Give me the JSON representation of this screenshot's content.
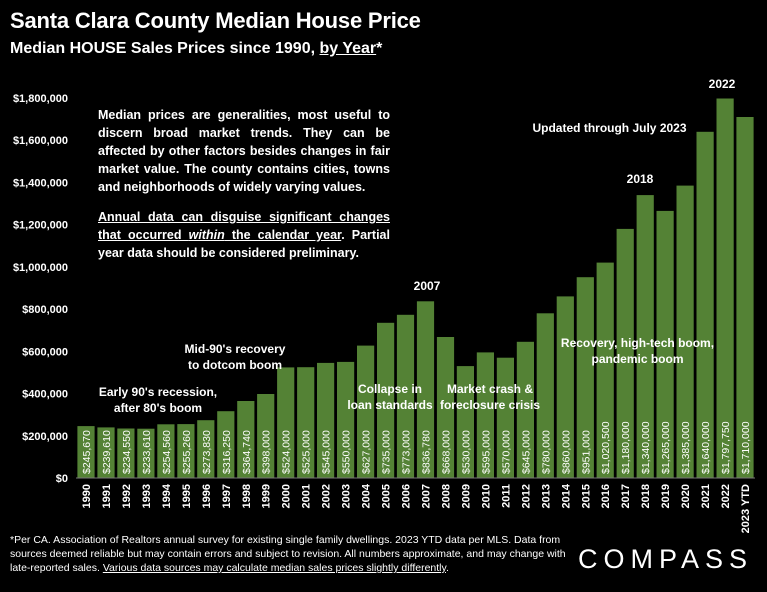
{
  "header": {
    "title": "Santa Clara County Median House Price",
    "subtitle_prefix": "Median HOUSE Sales Prices since 1990, ",
    "subtitle_link": "by Year",
    "subtitle_suffix": "*"
  },
  "notes": {
    "para1": "Median prices are generalities, most useful to discern broad market trends. They can be affected by other factors besides changes in fair market value. The county contains cities, towns and neighborhoods of widely varying values.",
    "para2_u1": "Annual data can disguise significant changes that occurred ",
    "para2_italic": "within",
    "para2_u2": " the calendar year",
    "para2_rest": ". Partial year data should be considered preliminary."
  },
  "annotations": {
    "early90s": "Early 90's recession,\nafter 80's boom",
    "mid90s": "Mid-90's recovery\nto dotcom boom",
    "y2007": "2007",
    "collapse": "Collapse in\nloan standards",
    "crash": "Market crash &\nforeclosure crisis",
    "y2018": "2018",
    "recovery": "Recovery, high-tech boom,\npandemic boom",
    "y2022": "2022",
    "updated": "Updated through July 2023"
  },
  "footer": {
    "line_main": "*Per CA. Association of Realtors annual survey for existing single family dwellings. 2023 YTD data per MLS. Data from sources deemed reliable but may contain errors and subject to revision. All numbers approximate, and may change with late-reported sales. ",
    "line_underlined": "Various data sources may calculate median sales prices slightly differently",
    "line_end": ".",
    "logo": "COMPASS"
  },
  "colors": {
    "bar": "#548235",
    "background": "#000000",
    "text": "#ffffff"
  },
  "chart_data": {
    "type": "bar",
    "title": "Santa Clara County Median House Price",
    "ylim": [
      0,
      1800000
    ],
    "yticks": [
      "$0",
      "$200,000",
      "$400,000",
      "$600,000",
      "$800,000",
      "$1,000,000",
      "$1,200,000",
      "$1,400,000",
      "$1,600,000",
      "$1,800,000"
    ],
    "ytick_values": [
      0,
      200000,
      400000,
      600000,
      800000,
      1000000,
      1200000,
      1400000,
      1600000,
      1800000
    ],
    "categories": [
      "1990",
      "1991",
      "1992",
      "1993",
      "1994",
      "1995",
      "1996",
      "1997",
      "1998",
      "1999",
      "2000",
      "2001",
      "2002",
      "2003",
      "2004",
      "2005",
      "2006",
      "2007",
      "2008",
      "2009",
      "2010",
      "2011",
      "2012",
      "2013",
      "2014",
      "2015",
      "2016",
      "2017",
      "2018",
      "2019",
      "2020",
      "2021",
      "2022",
      "2023 YTD"
    ],
    "values": [
      245670,
      239610,
      234550,
      233610,
      254560,
      255260,
      273830,
      316250,
      364740,
      398000,
      524000,
      525000,
      545000,
      550000,
      627000,
      735000,
      773000,
      836780,
      668000,
      530000,
      595000,
      570000,
      645000,
      780000,
      860000,
      951000,
      1020500,
      1180000,
      1340000,
      1265000,
      1385000,
      1640000,
      1797750,
      1710000
    ],
    "labels": [
      "$245,670",
      "$239,610",
      "$234,550",
      "$233,610",
      "$254,560",
      "$255,260",
      "$273,830",
      "$316,250",
      "$364,740",
      "$398,000",
      "$524,000",
      "$525,000",
      "$545,000",
      "$550,000",
      "$627,000",
      "$735,000",
      "$773,000",
      "$836,780",
      "$668,000",
      "$530,000",
      "$595,000",
      "$570,000",
      "$645,000",
      "$780,000",
      "$860,000",
      "$951,000",
      "$1,020,500",
      "$1,180,000",
      "$1,340,000",
      "$1,265,000",
      "$1,385,000",
      "$1,640,000",
      "$1,797,750",
      "$1,710,000"
    ],
    "grid": false,
    "legend": "none"
  }
}
